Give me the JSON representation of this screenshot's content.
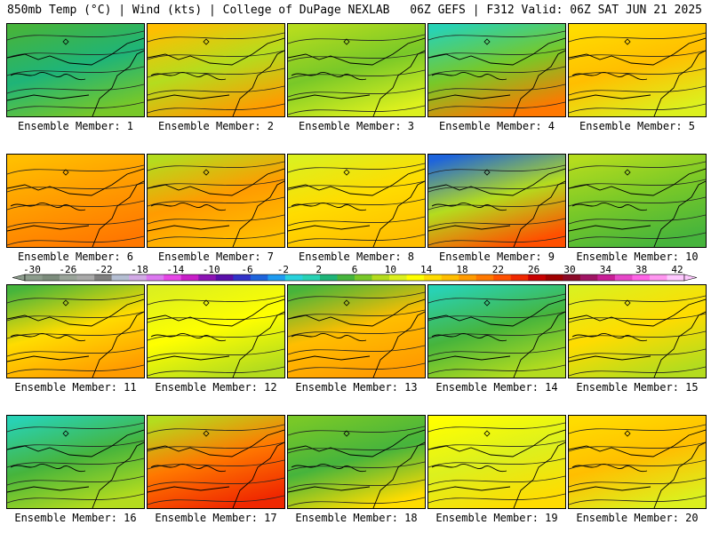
{
  "header": {
    "left": "850mb Temp (°C) | Wind (kts) | College of DuPage NEXLAB",
    "right": "06Z GEFS | F312 Valid: 06Z SAT JUN 21 2025"
  },
  "colorbar": {
    "ticks": [
      "-30",
      "-26",
      "-22",
      "-18",
      "-14",
      "-10",
      "-6",
      "-2",
      "2",
      "6",
      "10",
      "14",
      "18",
      "22",
      "26",
      "30",
      "34",
      "38",
      "42"
    ],
    "colors": [
      "#8c9c8c",
      "#7c8c7c",
      "#9aa49a",
      "#a9a9a9",
      "#7f7f7f",
      "#b4bed2",
      "#d2aae6",
      "#dc78f0",
      "#e646e6",
      "#c81ec8",
      "#8c14b4",
      "#5a0faa",
      "#3232c8",
      "#1e64dc",
      "#1e9bf0",
      "#28d2dc",
      "#28d2b4",
      "#1eb478",
      "#46b43c",
      "#78c828",
      "#b4dc1e",
      "#dcf01e",
      "#ffff00",
      "#ffdc00",
      "#ffbe00",
      "#ff9b00",
      "#ff7800",
      "#ff5000",
      "#f02800",
      "#c80000",
      "#a00000",
      "#8c0a28",
      "#a01464",
      "#c81e96",
      "#e646c8",
      "#ff64e6",
      "#ff96f0",
      "#ffc8ff"
    ]
  },
  "members": [
    {
      "label": "Ensemble Member: 1",
      "colors": [
        "#46b43c",
        "#1eb478",
        "#78c828"
      ]
    },
    {
      "label": "Ensemble Member: 2",
      "colors": [
        "#ffbe00",
        "#b4dc1e",
        "#ff9b00"
      ]
    },
    {
      "label": "Ensemble Member: 3",
      "colors": [
        "#b4dc1e",
        "#78c828",
        "#dcf01e"
      ]
    },
    {
      "label": "Ensemble Member: 4",
      "colors": [
        "#28d2b4",
        "#78c828",
        "#ff7800"
      ]
    },
    {
      "label": "Ensemble Member: 5",
      "colors": [
        "#ffdc00",
        "#ffbe00",
        "#dcf01e"
      ]
    },
    {
      "label": "Ensemble Member: 6",
      "colors": [
        "#ffbe00",
        "#ff9b00",
        "#ff7800"
      ]
    },
    {
      "label": "Ensemble Member: 7",
      "colors": [
        "#b4dc1e",
        "#ff9b00",
        "#ffbe00"
      ]
    },
    {
      "label": "Ensemble Member: 8",
      "colors": [
        "#dcf01e",
        "#ffdc00",
        "#ffbe00"
      ]
    },
    {
      "label": "Ensemble Member: 9",
      "colors": [
        "#1e64dc",
        "#b4dc1e",
        "#ff5000"
      ]
    },
    {
      "label": "Ensemble Member: 10",
      "colors": [
        "#b4dc1e",
        "#78c828",
        "#46b43c"
      ]
    },
    {
      "label": "Ensemble Member: 11",
      "colors": [
        "#46b43c",
        "#ffdc00",
        "#ff9b00"
      ]
    },
    {
      "label": "Ensemble Member: 12",
      "colors": [
        "#dcf01e",
        "#ffff00",
        "#b4dc1e"
      ]
    },
    {
      "label": "Ensemble Member: 13",
      "colors": [
        "#46b43c",
        "#ffbe00",
        "#ff9b00"
      ]
    },
    {
      "label": "Ensemble Member: 14",
      "colors": [
        "#28d2b4",
        "#46b43c",
        "#b4dc1e"
      ]
    },
    {
      "label": "Ensemble Member: 15",
      "colors": [
        "#dcf01e",
        "#ffdc00",
        "#b4dc1e"
      ]
    },
    {
      "label": "Ensemble Member: 16",
      "colors": [
        "#28d2b4",
        "#46b43c",
        "#b4dc1e"
      ]
    },
    {
      "label": "Ensemble Member: 17",
      "colors": [
        "#b4dc1e",
        "#ff7800",
        "#f02800"
      ]
    },
    {
      "label": "Ensemble Member: 18",
      "colors": [
        "#78c828",
        "#46b43c",
        "#ffdc00"
      ]
    },
    {
      "label": "Ensemble Member: 19",
      "colors": [
        "#ffff00",
        "#dcf01e",
        "#ffdc00"
      ]
    },
    {
      "label": "Ensemble Member: 20",
      "colors": [
        "#ffdc00",
        "#ffbe00",
        "#dcf01e"
      ]
    }
  ]
}
